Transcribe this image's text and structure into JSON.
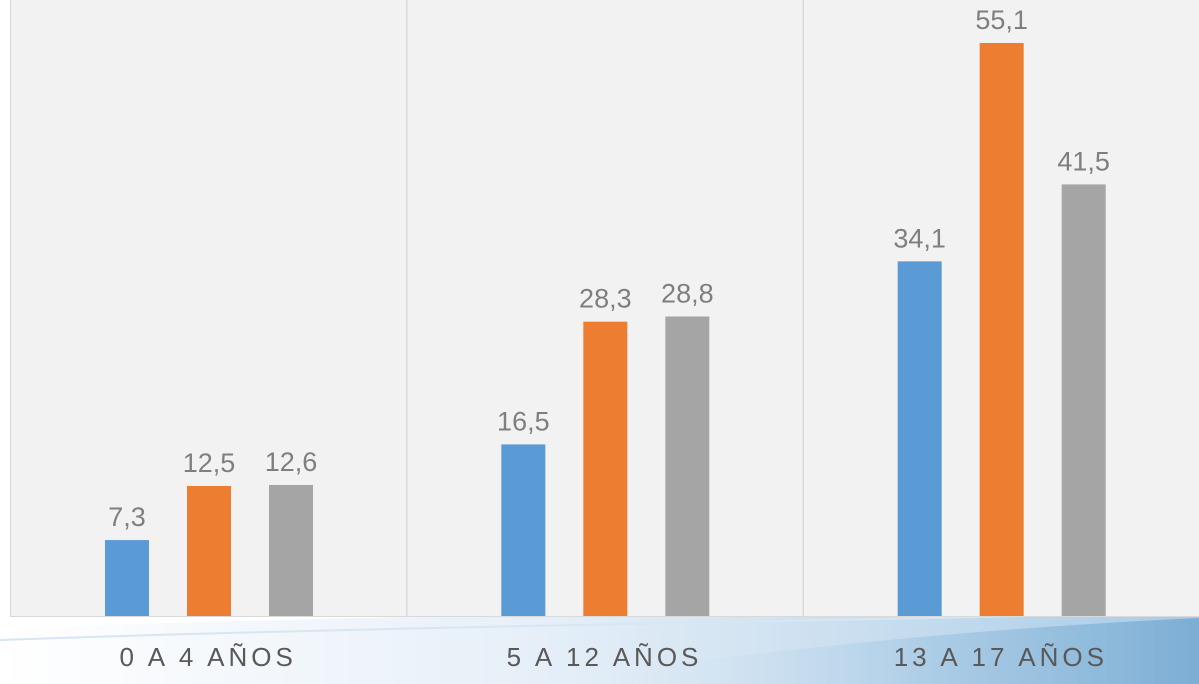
{
  "chart_data": {
    "type": "bar",
    "categories": [
      "0 A 4 AÑOS",
      "5 A 12 AÑOS",
      "13 A 17 AÑOS"
    ],
    "series": [
      {
        "values": [
          7.3,
          16.5,
          34.1
        ],
        "labels": [
          "7,3",
          "16,5",
          "34,1"
        ],
        "color": "#5b9bd5"
      },
      {
        "values": [
          12.5,
          28.3,
          55.1
        ],
        "labels": [
          "12,5",
          "28,3",
          "55,1"
        ],
        "color": "#ed7d31"
      },
      {
        "values": [
          12.6,
          28.8,
          41.5
        ],
        "labels": [
          "12,6",
          "28,8",
          "41,5"
        ],
        "color": "#a5a5a5"
      }
    ],
    "ylim": [
      0,
      60
    ],
    "grid": false,
    "legend": "none",
    "title": "",
    "xlabel": "",
    "ylabel": ""
  },
  "colors": {
    "plot_background": "#f2f2f2",
    "separator": "#d9d9d9",
    "value_label": "#7f7f7f",
    "category_label": "#595959",
    "wave_light": "#e4eef7",
    "wave_accent": "#6aa6cf"
  }
}
